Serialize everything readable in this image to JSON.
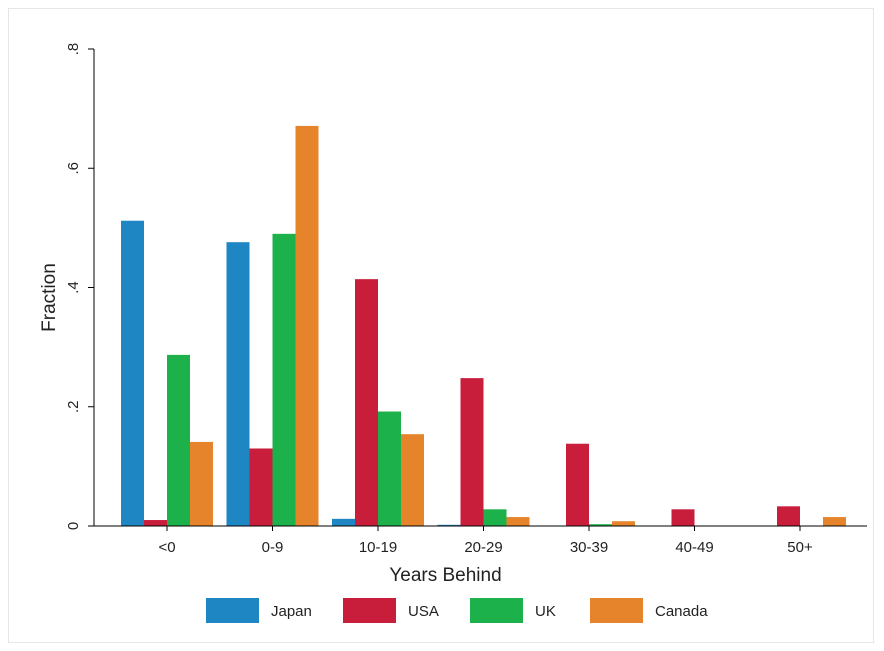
{
  "chart_data": {
    "type": "bar",
    "title": "",
    "xlabel": "Years Behind",
    "ylabel": "Fraction",
    "categories": [
      "<0",
      "0-9",
      "10-19",
      "20-29",
      "30-39",
      "40-49",
      "50+"
    ],
    "ylim": [
      0,
      0.8
    ],
    "yticks": [
      {
        "value": 0,
        "label": "0"
      },
      {
        "value": 0.2,
        "label": ".2"
      },
      {
        "value": 0.4,
        "label": ".4"
      },
      {
        "value": 0.6,
        "label": ".6"
      },
      {
        "value": 0.8,
        "label": ".8"
      }
    ],
    "grid": false,
    "legend_position": "bottom",
    "series": [
      {
        "name": "Japan",
        "color": "#1f86c4",
        "values": [
          0.512,
          0.476,
          0.012,
          0.002,
          0.0,
          0.0,
          0.0
        ]
      },
      {
        "name": "USA",
        "color": "#c81e3c",
        "values": [
          0.01,
          0.13,
          0.414,
          0.248,
          0.138,
          0.028,
          0.033
        ]
      },
      {
        "name": "UK",
        "color": "#1db14b",
        "values": [
          0.287,
          0.49,
          0.192,
          0.028,
          0.003,
          0.0,
          0.0
        ]
      },
      {
        "name": "Canada",
        "color": "#e5842a",
        "values": [
          0.141,
          0.671,
          0.154,
          0.015,
          0.008,
          0.0,
          0.015
        ]
      }
    ]
  }
}
